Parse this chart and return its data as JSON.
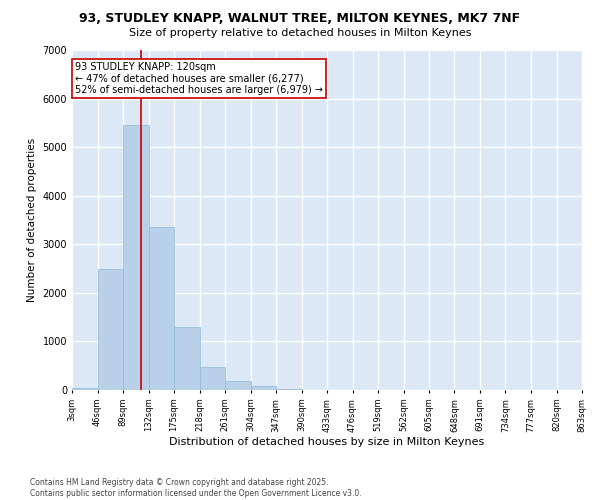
{
  "title_line1": "93, STUDLEY KNAPP, WALNUT TREE, MILTON KEYNES, MK7 7NF",
  "title_line2": "Size of property relative to detached houses in Milton Keynes",
  "xlabel": "Distribution of detached houses by size in Milton Keynes",
  "ylabel": "Number of detached properties",
  "annotation_line1": "93 STUDLEY KNAPP: 120sqm",
  "annotation_line2": "← 47% of detached houses are smaller (6,277)",
  "annotation_line3": "52% of semi-detached houses are larger (6,979) →",
  "bar_color": "#b8d0e8",
  "bar_edgecolor": "#90b8d8",
  "vline_color": "#cc0000",
  "vline_x": 120,
  "background_color": "#dce8f5",
  "grid_color": "#ffffff",
  "fig_background": "#ffffff",
  "footer_line1": "Contains HM Land Registry data © Crown copyright and database right 2025.",
  "footer_line2": "Contains public sector information licensed under the Open Government Licence v3.0.",
  "bin_edges": [
    3,
    46,
    89,
    132,
    175,
    218,
    261,
    304,
    347,
    390,
    433,
    476,
    519,
    562,
    605,
    648,
    691,
    734,
    777,
    820,
    863
  ],
  "bin_counts": [
    50,
    2500,
    5450,
    3350,
    1300,
    480,
    180,
    80,
    20,
    8,
    4,
    2,
    2,
    1,
    1,
    1,
    1,
    1,
    1,
    1
  ],
  "ylim": [
    0,
    7000
  ],
  "yticks": [
    0,
    1000,
    2000,
    3000,
    4000,
    5000,
    6000,
    7000
  ]
}
